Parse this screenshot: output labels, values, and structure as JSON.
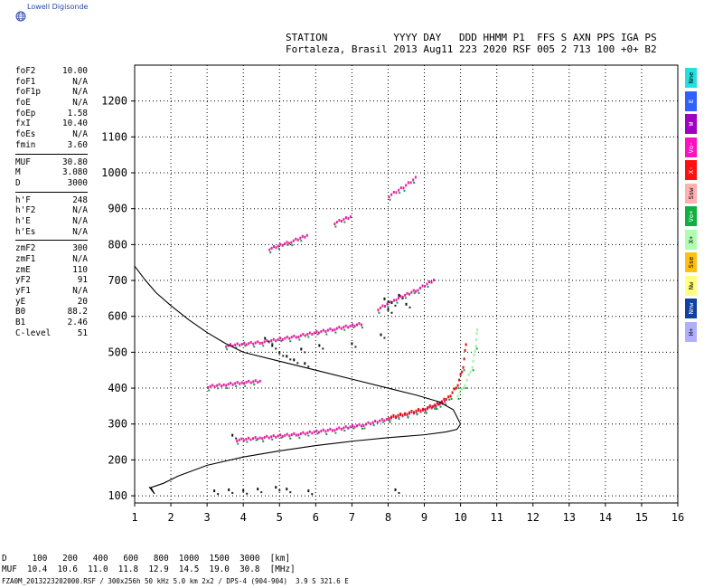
{
  "brand": {
    "name": "Lowell Digisonde",
    "logo_icon": "globe-icon"
  },
  "header": {
    "line1": "STATION           YYYY DAY   DDD HHMM P1  FFS S AXN PPS IGA PS",
    "line2": "Fortaleza, Brasil 2013 Aug11 223 2020 RSF 005 2 713 100 +0+ B2"
  },
  "params": [
    {
      "group": [
        {
          "label": "foF2",
          "value": "10.00"
        },
        {
          "label": "foF1",
          "value": "N/A"
        },
        {
          "label": "foF1p",
          "value": "N/A"
        },
        {
          "label": "foE",
          "value": "N/A"
        },
        {
          "label": "foEp",
          "value": "1.58"
        },
        {
          "label": "fxI",
          "value": "10.40"
        },
        {
          "label": "foEs",
          "value": "N/A"
        },
        {
          "label": "fmin",
          "value": "3.60"
        }
      ]
    },
    {
      "group": [
        {
          "label": "MUF",
          "value": "30.80"
        },
        {
          "label": "M",
          "value": "3.080"
        },
        {
          "label": "D",
          "value": "3000"
        }
      ]
    },
    {
      "group": [
        {
          "label": "h'F",
          "value": "248"
        },
        {
          "label": "h'F2",
          "value": "N/A"
        },
        {
          "label": "h'E",
          "value": "N/A"
        },
        {
          "label": "h'Es",
          "value": "N/A"
        }
      ]
    },
    {
      "group": [
        {
          "label": "zmF2",
          "value": "300"
        },
        {
          "label": "zmF1",
          "value": "N/A"
        },
        {
          "label": "zmE",
          "value": "110"
        },
        {
          "label": "yF2",
          "value": "91"
        },
        {
          "label": "yF1",
          "value": "N/A"
        },
        {
          "label": "yE",
          "value": "20"
        },
        {
          "label": "B0",
          "value": "88.2"
        },
        {
          "label": "B1",
          "value": "2.46"
        },
        {
          "label": "C-level",
          "value": "51"
        }
      ]
    }
  ],
  "legend": [
    {
      "label": "Nne",
      "color": "#22e0e0"
    },
    {
      "label": "E",
      "color": "#3060ff"
    },
    {
      "label": "W",
      "color": "#a000c0"
    },
    {
      "label": "Vo-",
      "color": "#ff10c0"
    },
    {
      "label": "X-",
      "color": "#ff1010"
    },
    {
      "label": "Ssw",
      "color": "#ffb0b0"
    },
    {
      "label": "Vo+",
      "color": "#10b040"
    },
    {
      "label": "X+",
      "color": "#b0ffb0"
    },
    {
      "label": "Sse",
      "color": "#ffc010"
    },
    {
      "label": "Nw",
      "color": "#ffff80"
    },
    {
      "label": "Nnw",
      "color": "#1040a0"
    },
    {
      "label": "H+",
      "color": "#b0b0ff"
    }
  ],
  "bottom_table": {
    "line1": "D     100   200   400   600   800  1000  1500  3000  [km]",
    "line2": "MUF  10.4  10.6  11.0  11.8  12.9  14.5  19.0  30.8  [MHz]"
  },
  "footer": "FZA0M_2013223202000.RSF / 300x256h 50 kHz 5.0 km 2x2 / DPS-4 (904-904)  3.9 S 321.6 E",
  "chart_data": {
    "type": "scatter",
    "title": "",
    "xlabel": "",
    "ylabel": "",
    "xlim": [
      1,
      16
    ],
    "ylim": [
      80,
      1300
    ],
    "xticks": [
      1,
      2,
      3,
      4,
      5,
      6,
      7,
      8,
      9,
      10,
      11,
      12,
      13,
      14,
      15,
      16
    ],
    "yticks": [
      100,
      200,
      300,
      400,
      500,
      600,
      700,
      800,
      900,
      1000,
      1100,
      1200
    ],
    "grid": true,
    "profile_curve": {
      "x": [
        1.0,
        1.3,
        1.6,
        2.0,
        2.5,
        3.0,
        3.5,
        4.0,
        5.0,
        6.0,
        7.0,
        8.0,
        8.8,
        9.4,
        9.8,
        10.0,
        9.9,
        9.6,
        9.0,
        8.0,
        7.0,
        6.0,
        5.0,
        4.0,
        3.0,
        2.2,
        1.8,
        1.45,
        1.55,
        1.4
      ],
      "y": [
        740,
        700,
        665,
        630,
        590,
        555,
        525,
        500,
        475,
        450,
        425,
        400,
        380,
        362,
        340,
        300,
        285,
        278,
        270,
        262,
        252,
        240,
        225,
        208,
        185,
        155,
        135,
        123,
        105,
        125
      ]
    },
    "traces": [
      {
        "name": "F2 o-trace",
        "color": "#e020a0",
        "x": [
          3.8,
          4.5,
          5.5,
          6.5,
          7.3,
          8.0,
          8.5,
          9.0,
          9.3,
          9.6
        ],
        "y": [
          255,
          262,
          272,
          285,
          298,
          315,
          328,
          340,
          352,
          365
        ]
      },
      {
        "name": "F2 x-trace",
        "color": "#e01010",
        "x": [
          8.0,
          8.5,
          9.0,
          9.4,
          9.7,
          9.9,
          10.05,
          10.15
        ],
        "y": [
          318,
          330,
          343,
          358,
          380,
          410,
          460,
          545
        ]
      },
      {
        "name": "F2 x-trace green",
        "color": "#a0f0a0",
        "x": [
          9.9,
          10.1,
          10.3,
          10.4,
          10.45
        ],
        "y": [
          380,
          410,
          460,
          520,
          580
        ]
      },
      {
        "name": "2F echo",
        "color": "#e020a0",
        "x": [
          3.5,
          4.5,
          5.5,
          6.5,
          7.3
        ],
        "y": [
          518,
          528,
          545,
          565,
          580
        ]
      },
      {
        "name": "2F upper",
        "color": "#e020a0",
        "x": [
          7.7,
          8.2,
          8.8,
          9.3
        ],
        "y": [
          620,
          648,
          675,
          705
        ]
      },
      {
        "name": "3F echo",
        "color": "#e020a0",
        "x": [
          4.7,
          5.3,
          5.8
        ],
        "y": [
          788,
          808,
          828
        ]
      },
      {
        "name": "3F upper",
        "color": "#e020a0",
        "x": [
          6.5,
          7.0
        ],
        "y": [
          860,
          880
        ]
      },
      {
        "name": "4F echo",
        "color": "#e020a0",
        "x": [
          8.0,
          8.4,
          8.8
        ],
        "y": [
          935,
          960,
          990
        ]
      },
      {
        "name": "E echo",
        "color": "#e020a0",
        "x": [
          3.0,
          3.5,
          4.0,
          4.5
        ],
        "y": [
          404,
          410,
          416,
          420
        ]
      }
    ],
    "dark_points": [
      {
        "x": 3.2,
        "y": 115
      },
      {
        "x": 3.6,
        "y": 118
      },
      {
        "x": 4.0,
        "y": 116
      },
      {
        "x": 4.4,
        "y": 120
      },
      {
        "x": 4.9,
        "y": 125
      },
      {
        "x": 5.2,
        "y": 120
      },
      {
        "x": 5.8,
        "y": 115
      },
      {
        "x": 4.8,
        "y": 520
      },
      {
        "x": 5.0,
        "y": 500
      },
      {
        "x": 5.2,
        "y": 490
      },
      {
        "x": 5.4,
        "y": 480
      },
      {
        "x": 5.6,
        "y": 510
      },
      {
        "x": 4.6,
        "y": 540
      },
      {
        "x": 5.7,
        "y": 470
      },
      {
        "x": 7.9,
        "y": 650
      },
      {
        "x": 8.1,
        "y": 640
      },
      {
        "x": 8.3,
        "y": 660
      },
      {
        "x": 8.5,
        "y": 635
      },
      {
        "x": 8.0,
        "y": 620
      },
      {
        "x": 7.8,
        "y": 550
      },
      {
        "x": 6.1,
        "y": 520
      },
      {
        "x": 7.0,
        "y": 525
      },
      {
        "x": 8.2,
        "y": 118
      },
      {
        "x": 3.7,
        "y": 270
      }
    ]
  }
}
